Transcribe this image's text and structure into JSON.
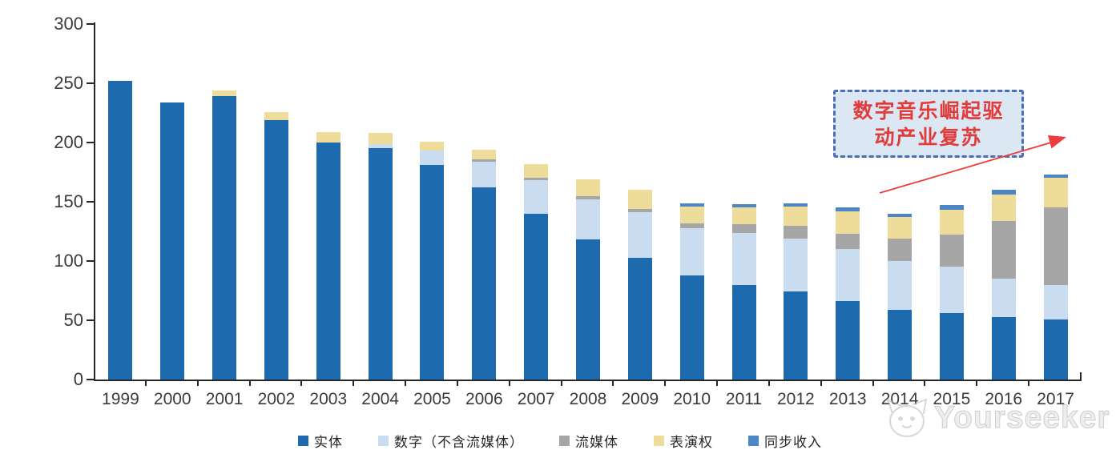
{
  "chart": {
    "annotation": {
      "line1": "数字音乐崛起驱",
      "line2": "动产业复苏"
    },
    "watermark": {
      "text": "Yourseeker",
      "logo": "cat-face-icon"
    },
    "colors": {
      "axis": "#262626",
      "tick_label": "#3b3b3b",
      "annotation_text": "#e23b3b",
      "annotation_fill": "#dce7f4",
      "annotation_border": "#4a6fb5",
      "arrow_red": "#ee3b3b"
    }
  },
  "chart_data": {
    "type": "bar",
    "stacked": true,
    "title": "",
    "xlabel": "",
    "ylabel": "",
    "categories": [
      "1999",
      "2000",
      "2001",
      "2002",
      "2003",
      "2004",
      "2005",
      "2006",
      "2007",
      "2008",
      "2009",
      "2010",
      "2011",
      "2012",
      "2013",
      "2014",
      "2015",
      "2016",
      "2017"
    ],
    "series": [
      {
        "name": "实体",
        "color": "#1E6AAE",
        "values": [
          252,
          234,
          239,
          219,
          200,
          195,
          181,
          162,
          140,
          118,
          103,
          88,
          80,
          74,
          66,
          59,
          56,
          53,
          51
        ]
      },
      {
        "name": "数字（不含流媒体）",
        "color": "#C9DCF0",
        "values": [
          0,
          0,
          0,
          0,
          0,
          4,
          12,
          22,
          28,
          34,
          38,
          40,
          44,
          45,
          44,
          41,
          39,
          32,
          29
        ]
      },
      {
        "name": "流媒体",
        "color": "#A6A6A6",
        "values": [
          0,
          0,
          0,
          0,
          0,
          0,
          0,
          2,
          2,
          3,
          3,
          4,
          7,
          11,
          13,
          19,
          27,
          49,
          65
        ]
      },
      {
        "name": "表演权",
        "color": "#EEDC9A",
        "values": [
          0,
          0,
          5,
          7,
          9,
          9,
          8,
          8,
          12,
          14,
          16,
          14,
          14,
          16,
          19,
          18,
          21,
          22,
          25
        ]
      },
      {
        "name": "同步收入",
        "color": "#4C86C6",
        "values": [
          0,
          0,
          0,
          0,
          0,
          0,
          0,
          0,
          0,
          0,
          0,
          3,
          3,
          3,
          3,
          3,
          4,
          4,
          3
        ]
      }
    ],
    "totals": [
      252,
      234,
      244,
      226,
      209,
      208,
      201,
      194,
      182,
      169,
      160,
      149,
      148,
      149,
      145,
      140,
      147,
      160,
      173
    ],
    "ylim": [
      0,
      300
    ],
    "yticks": [
      0,
      50,
      100,
      150,
      200,
      250,
      300
    ],
    "grid": false,
    "legend_position": "bottom"
  }
}
